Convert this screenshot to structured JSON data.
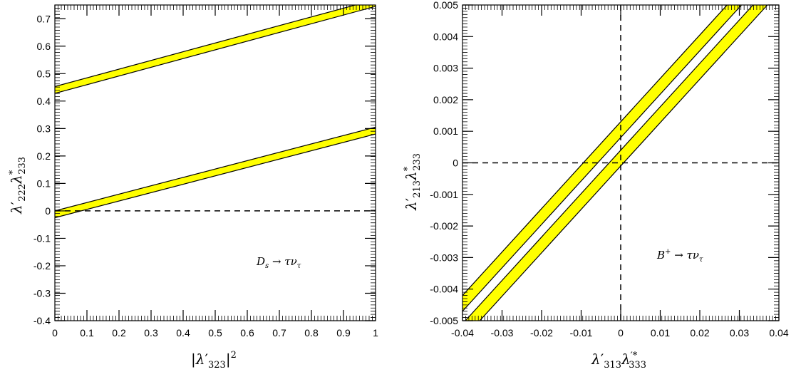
{
  "chart_data": [
    {
      "type": "line",
      "xlim": [
        0,
        1
      ],
      "ylim": [
        -0.4,
        0.75
      ],
      "x_ticks": [
        0,
        0.1,
        0.2,
        0.3,
        0.4,
        0.5,
        0.6,
        0.7,
        0.8,
        0.9,
        1
      ],
      "x_tick_labels": [
        "0",
        "0.1",
        "0.2",
        "0.3",
        "0.4",
        "0.5",
        "0.6",
        "0.7",
        "0.8",
        "0.9",
        "1"
      ],
      "y_ticks": [
        -0.4,
        -0.3,
        -0.2,
        -0.1,
        0,
        0.1,
        0.2,
        0.3,
        0.4,
        0.5,
        0.6,
        0.7
      ],
      "y_tick_labels": [
        "-0.4",
        "-0.3",
        "-0.2",
        "-0.1",
        "0",
        "0.1",
        "0.2",
        "0.3",
        "0.4",
        "0.5",
        "0.6",
        "0.7"
      ],
      "xlabel": "|λ′323|²",
      "ylabel": "λ′222λ*233",
      "annotation": "Ds → τντ",
      "reference_lines": {
        "y0": true,
        "x0": false
      },
      "band_color": "#ffff00",
      "bands": [
        {
          "x": [
            0,
            1
          ],
          "lower": [
            0.428,
            0.745
          ],
          "upper": [
            0.453,
            0.77
          ]
        },
        {
          "x": [
            0,
            1
          ],
          "lower": [
            -0.025,
            0.28
          ],
          "upper": [
            0.0,
            0.305
          ]
        }
      ]
    },
    {
      "type": "line",
      "xlim": [
        -0.04,
        0.04
      ],
      "ylim": [
        -0.005,
        0.005
      ],
      "x_ticks": [
        -0.04,
        -0.03,
        -0.02,
        -0.01,
        0,
        0.01,
        0.02,
        0.03,
        0.04
      ],
      "x_tick_labels": [
        "-0.04",
        "-0.03",
        "-0.02",
        "-0.01",
        "0",
        "0.01",
        "0.02",
        "0.03",
        "0.04"
      ],
      "y_ticks": [
        -0.005,
        -0.004,
        -0.003,
        -0.002,
        -0.001,
        0,
        0.001,
        0.002,
        0.003,
        0.004,
        0.005
      ],
      "y_tick_labels": [
        "-0.005",
        "-0.004",
        "-0.003",
        "-0.002",
        "-0.001",
        "0",
        "0.001",
        "0.002",
        "0.003",
        "0.004",
        "0.005"
      ],
      "xlabel": "λ′313λ′*333",
      "ylabel": "λ′213λ*233",
      "annotation": "B+ → τντ",
      "reference_lines": {
        "y0": true,
        "x0": true
      },
      "band_color": "#ffff00",
      "bands": [
        {
          "x": [
            -0.04,
            0.04
          ],
          "lower": [
            -0.0047,
            0.0063
          ],
          "upper": [
            -0.0042,
            0.0068
          ]
        },
        {
          "x": [
            -0.04,
            0.04
          ],
          "lower": [
            -0.0056,
            0.0054
          ],
          "upper": [
            -0.0051,
            0.0059
          ]
        }
      ]
    }
  ]
}
